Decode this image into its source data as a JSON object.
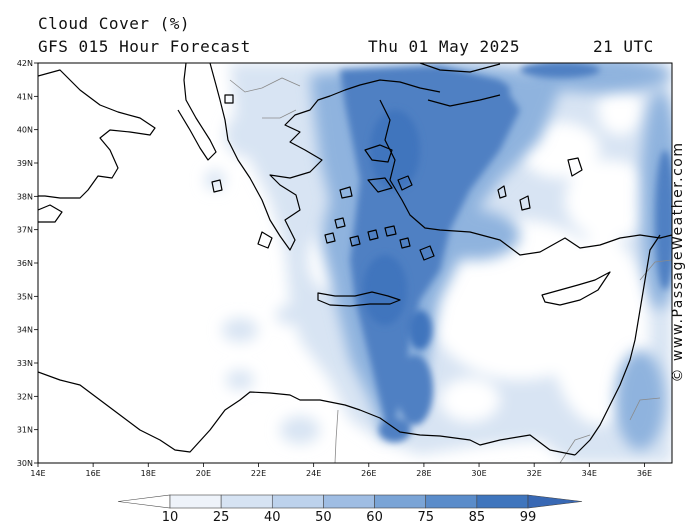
{
  "header": {
    "title": "Cloud Cover (%)",
    "subtitle": "GFS 015 Hour Forecast",
    "date": "Thu 01 May 2025",
    "time": "21 UTC"
  },
  "credit": "© www.PassageWeather.com",
  "map": {
    "lon_range": [
      14,
      37
    ],
    "lat_range": [
      30,
      42
    ],
    "lat_labels": [
      "42N",
      "41N",
      "40N",
      "39N",
      "38N",
      "37N",
      "36N",
      "35N",
      "34N",
      "33N",
      "32N",
      "31N",
      "30N"
    ],
    "lon_labels": [
      "14E",
      "16E",
      "18E",
      "20E",
      "22E",
      "24E",
      "26E",
      "28E",
      "30E",
      "32E",
      "34E",
      "36E"
    ]
  },
  "legend": {
    "levels": [
      "10",
      "25",
      "40",
      "50",
      "60",
      "75",
      "85",
      "99"
    ],
    "colors": [
      "#ffffff",
      "#eef3fa",
      "#d6e3f3",
      "#bdd2ec",
      "#9fbde3",
      "#7aa4d6",
      "#5a8cca",
      "#3f75bd"
    ]
  }
}
